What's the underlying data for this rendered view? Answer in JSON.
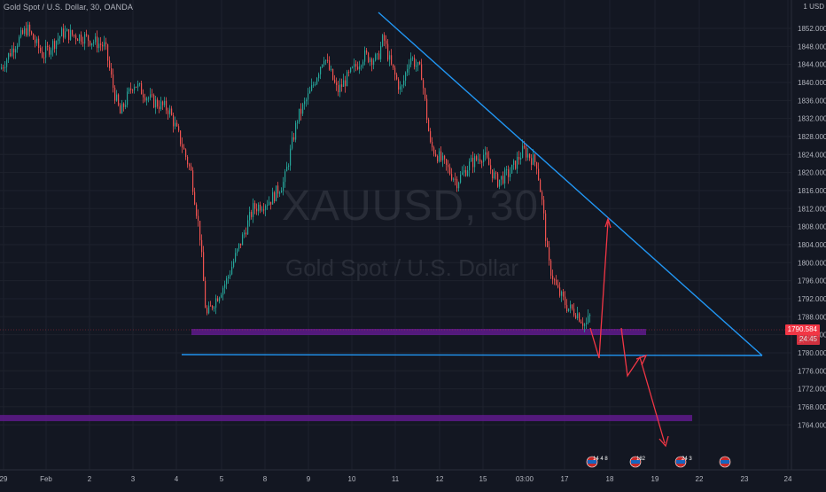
{
  "header": {
    "title": "Gold Spot / U.S. Dollar, 30, OANDA",
    "currency_button": "USD",
    "currency_prefix": "1"
  },
  "watermark": {
    "symbol": "XAUUSD, 30",
    "name": "Gold Spot / U.S. Dollar"
  },
  "price_axis": {
    "labels": [
      "1852.000",
      "1848.000",
      "1844.000",
      "1840.000",
      "1836.000",
      "1832.000",
      "1828.000",
      "1824.000",
      "1820.000",
      "1816.000",
      "1812.000",
      "1808.000",
      "1804.000",
      "1800.000",
      "1796.000",
      "1792.000",
      "1788.000",
      "1784.000",
      "1780.000",
      "1776.000",
      "1772.000",
      "1768.000",
      "1764.000"
    ],
    "values": [
      1852,
      1848,
      1844,
      1840,
      1836,
      1832,
      1828,
      1824,
      1820,
      1816,
      1812,
      1808,
      1804,
      1800,
      1796,
      1792,
      1788,
      1784,
      1780,
      1776,
      1772,
      1768,
      1764
    ],
    "last_price": "1790.584",
    "countdown": "24:45",
    "partial_label": "17"
  },
  "time_axis": {
    "labels": [
      "29",
      "Feb",
      "2",
      "3",
      "4",
      "5",
      "8",
      "9",
      "10",
      "11",
      "12",
      "15",
      "03:00",
      "17",
      "18",
      "19",
      "22",
      "23",
      "24"
    ]
  },
  "events": {
    "badges": [
      {
        "count": "14"
      },
      {
        "count": "8"
      },
      {
        "count": "182"
      },
      {
        "count": "24"
      },
      {
        "count": "3"
      }
    ]
  },
  "colors": {
    "background": "#131722",
    "up_candle": "#26a69a",
    "down_candle": "#ef5350",
    "trendline": "#2196f3",
    "arrow": "#f23645",
    "zone": "#6a1b9a",
    "axis_text": "#b2b5be"
  }
}
